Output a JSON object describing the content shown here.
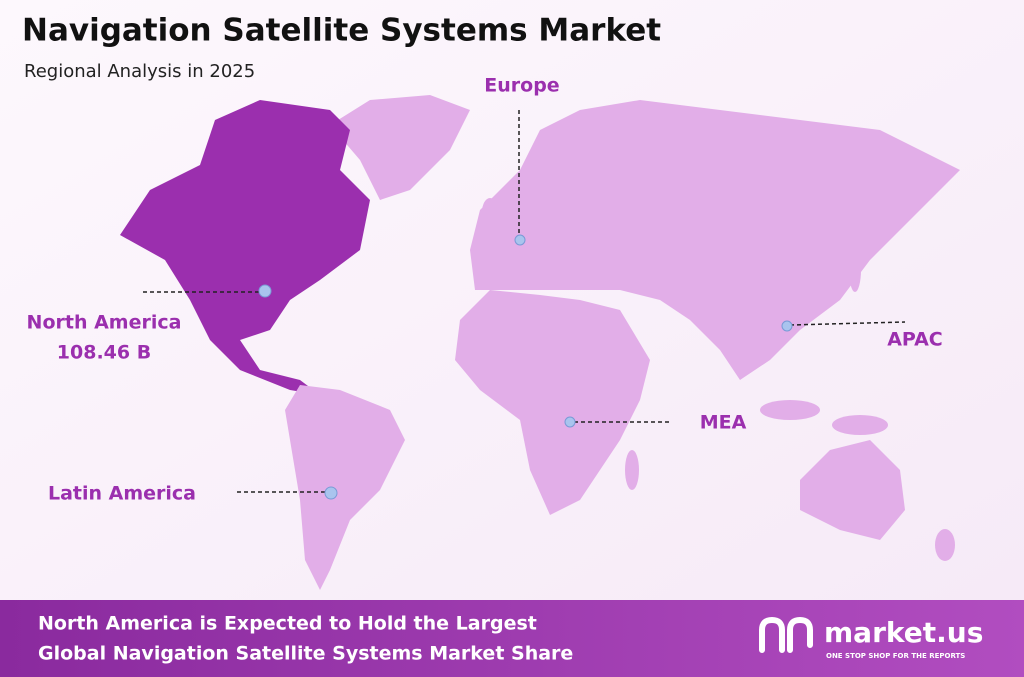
{
  "header": {
    "title": "Navigation Satellite Systems Market",
    "subtitle": "Regional Analysis in 2025"
  },
  "regions": [
    {
      "name": "North America",
      "value": "108.46 B"
    },
    {
      "name": "Europe"
    },
    {
      "name": "APAC"
    },
    {
      "name": "MEA"
    },
    {
      "name": "Latin America"
    }
  ],
  "footer": {
    "lines": [
      "North America is Expected to Hold the Largest",
      "Global Navigation Satellite Systems Market Share"
    ],
    "logo": {
      "name": "market.us",
      "tagline": "ONE STOP SHOP FOR THE REPORTS"
    }
  }
}
